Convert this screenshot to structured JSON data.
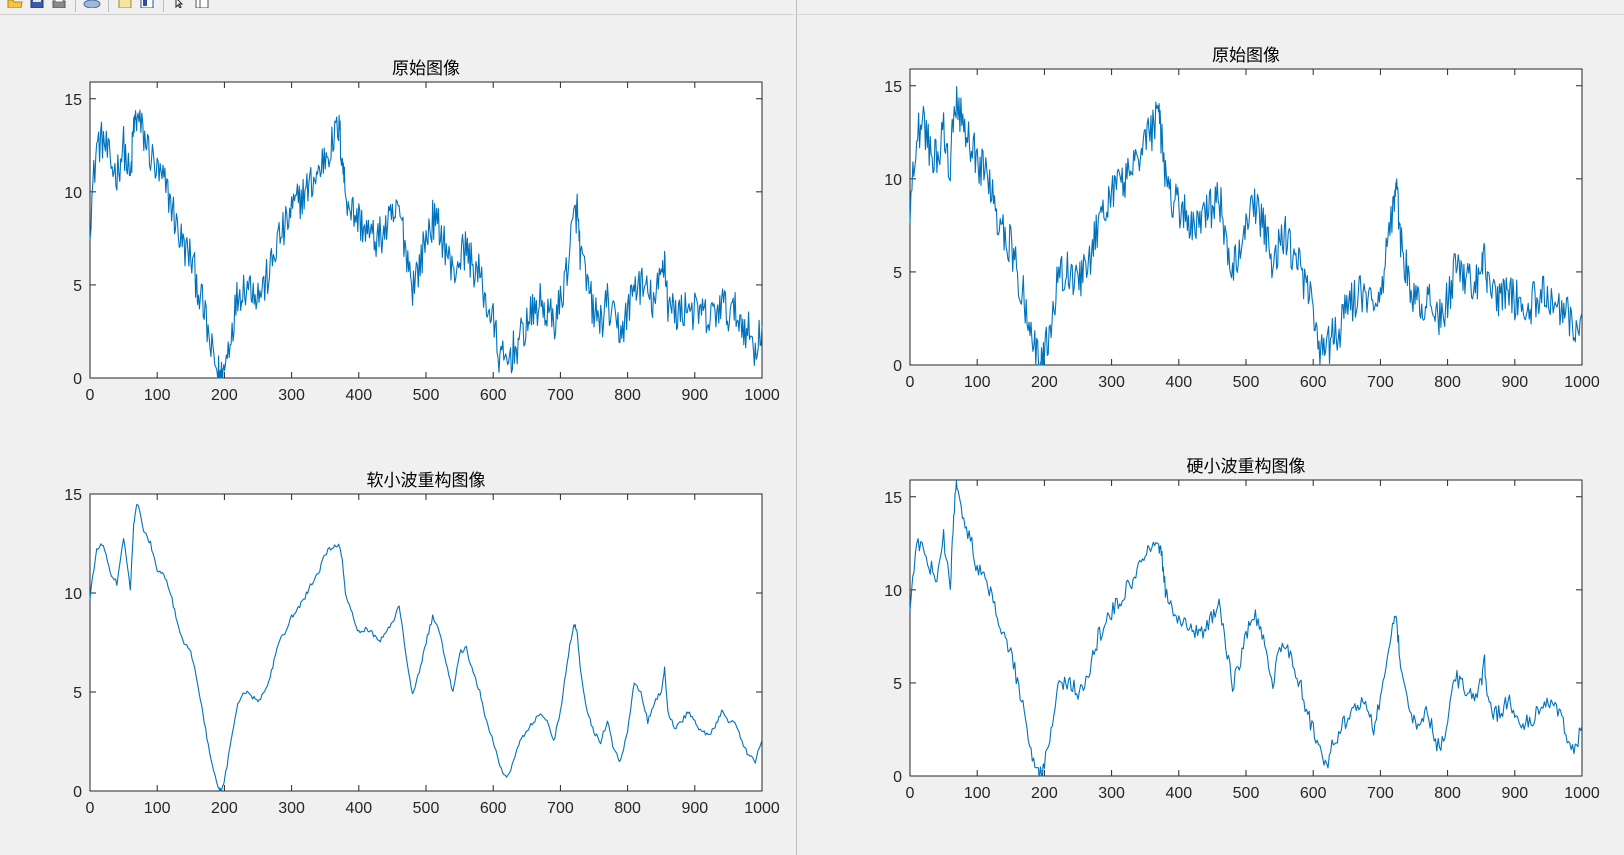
{
  "toolbar": {
    "icons": [
      "folder-open-icon",
      "save-icon",
      "print-icon",
      "link-icon",
      "new-figure-icon",
      "insert-colorbar-icon",
      "pointer-icon",
      "plot-browser-icon"
    ]
  },
  "colors": {
    "line": "#0072bd",
    "axes": "#262626",
    "figure_bg": "#f0f0f0",
    "plot_bg": "#ffffff"
  },
  "chart_data": [
    {
      "type": "line",
      "title": "原始图像",
      "xlabel": "",
      "ylabel": "",
      "xlim": [
        0,
        1000
      ],
      "ylim": [
        0,
        15.9
      ],
      "xticks": [
        "0",
        "100",
        "200",
        "300",
        "400",
        "500",
        "600",
        "700",
        "800",
        "900",
        "1000"
      ],
      "yticks": [
        "0",
        "5",
        "10",
        "15"
      ],
      "grid": false,
      "series": [
        {
          "noise": "raw",
          "x": [
            0,
            10,
            20,
            30,
            40,
            50,
            60,
            65,
            70,
            80,
            90,
            100,
            110,
            120,
            130,
            140,
            150,
            160,
            170,
            180,
            190,
            195,
            200,
            210,
            220,
            230,
            240,
            250,
            260,
            270,
            280,
            290,
            300,
            310,
            320,
            330,
            340,
            350,
            360,
            370,
            375,
            380,
            390,
            400,
            410,
            420,
            430,
            440,
            450,
            460,
            470,
            480,
            490,
            500,
            510,
            520,
            530,
            540,
            550,
            560,
            570,
            580,
            590,
            600,
            610,
            620,
            630,
            640,
            650,
            660,
            670,
            680,
            690,
            700,
            710,
            720,
            725,
            730,
            740,
            750,
            760,
            770,
            780,
            790,
            800,
            810,
            820,
            830,
            840,
            850,
            855,
            860,
            870,
            880,
            890,
            900,
            910,
            920,
            930,
            940,
            950,
            960,
            970,
            980,
            990,
            1000
          ],
          "y": [
            8.5,
            12.5,
            12.8,
            11.5,
            11.0,
            12.5,
            10.5,
            13.5,
            14.0,
            13.0,
            12.0,
            11.0,
            10.5,
            9.5,
            8.0,
            7.0,
            6.5,
            5.0,
            3.5,
            1.5,
            0.3,
            0.0,
            0.5,
            2.5,
            4.5,
            5.0,
            5.0,
            4.5,
            5.0,
            6.0,
            7.5,
            8.0,
            9.0,
            9.5,
            10.0,
            10.5,
            11.0,
            12.0,
            12.5,
            13.5,
            12.0,
            10.0,
            9.0,
            8.5,
            8.0,
            7.5,
            7.5,
            8.0,
            8.5,
            9.0,
            7.0,
            5.0,
            6.0,
            7.5,
            8.5,
            8.0,
            7.0,
            5.5,
            6.5,
            7.0,
            6.0,
            5.5,
            4.0,
            3.0,
            1.0,
            0.8,
            1.5,
            2.0,
            3.0,
            3.5,
            4.0,
            3.5,
            3.0,
            4.0,
            6.0,
            8.5,
            9.0,
            6.5,
            5.0,
            3.5,
            3.0,
            4.0,
            3.0,
            2.5,
            3.5,
            5.0,
            5.0,
            4.5,
            4.0,
            5.5,
            6.5,
            4.0,
            3.5,
            3.5,
            4.0,
            3.5,
            3.5,
            3.0,
            3.5,
            4.0,
            3.5,
            3.5,
            3.0,
            2.5,
            1.5,
            2.8
          ]
        }
      ]
    },
    {
      "type": "line",
      "title": "软小波重构图像",
      "xlabel": "",
      "ylabel": "",
      "xlim": [
        0,
        1000
      ],
      "ylim": [
        0,
        15
      ],
      "xticks": [
        "0",
        "100",
        "200",
        "300",
        "400",
        "500",
        "600",
        "700",
        "800",
        "900",
        "1000"
      ],
      "yticks": [
        "0",
        "5",
        "10",
        "15"
      ],
      "grid": false,
      "series": [
        {
          "noise": "smooth",
          "x": [
            0,
            10,
            20,
            30,
            40,
            50,
            60,
            65,
            70,
            80,
            90,
            100,
            110,
            120,
            130,
            140,
            150,
            160,
            170,
            180,
            190,
            195,
            200,
            210,
            220,
            230,
            240,
            250,
            260,
            270,
            280,
            290,
            300,
            310,
            320,
            330,
            340,
            350,
            360,
            370,
            375,
            380,
            390,
            400,
            410,
            420,
            430,
            440,
            450,
            460,
            470,
            480,
            490,
            500,
            510,
            520,
            530,
            540,
            550,
            560,
            570,
            580,
            590,
            600,
            610,
            620,
            630,
            640,
            650,
            660,
            670,
            680,
            690,
            700,
            710,
            720,
            725,
            730,
            740,
            750,
            760,
            770,
            780,
            790,
            800,
            810,
            820,
            830,
            840,
            850,
            855,
            860,
            870,
            880,
            890,
            900,
            910,
            920,
            930,
            940,
            950,
            960,
            970,
            980,
            990,
            1000
          ],
          "y": [
            9.8,
            12.2,
            12.5,
            11.0,
            10.5,
            12.8,
            10.2,
            13.5,
            14.6,
            13.2,
            12.5,
            11.2,
            11.0,
            10.0,
            8.5,
            7.5,
            7.0,
            5.5,
            3.5,
            1.5,
            0.2,
            0.0,
            0.5,
            2.5,
            4.5,
            5.0,
            4.8,
            4.5,
            5.0,
            6.0,
            7.5,
            8.0,
            8.8,
            9.2,
            9.8,
            10.5,
            11.0,
            12.0,
            12.3,
            12.5,
            11.8,
            10.0,
            9.0,
            8.0,
            8.2,
            8.0,
            7.5,
            8.0,
            8.5,
            9.4,
            7.0,
            4.8,
            6.0,
            7.5,
            8.8,
            8.0,
            6.5,
            5.0,
            7.0,
            7.2,
            6.0,
            5.0,
            3.5,
            2.5,
            1.2,
            0.6,
            1.5,
            2.5,
            3.0,
            3.5,
            4.0,
            3.5,
            2.5,
            4.0,
            6.5,
            8.5,
            8.0,
            6.0,
            4.0,
            3.0,
            2.5,
            3.5,
            2.0,
            1.5,
            3.0,
            5.5,
            5.0,
            3.5,
            4.5,
            5.0,
            6.2,
            4.0,
            3.2,
            3.5,
            4.0,
            3.5,
            3.0,
            2.8,
            3.2,
            4.0,
            3.5,
            3.5,
            2.5,
            1.8,
            1.5,
            2.6
          ]
        }
      ]
    },
    {
      "type": "line",
      "title": "原始图像",
      "xlabel": "",
      "ylabel": "",
      "xlim": [
        0,
        1000
      ],
      "ylim": [
        0,
        15.9
      ],
      "xticks": [
        "0",
        "100",
        "200",
        "300",
        "400",
        "500",
        "600",
        "700",
        "800",
        "900",
        "1000"
      ],
      "yticks": [
        "0",
        "5",
        "10",
        "15"
      ],
      "grid": false,
      "series": [
        {
          "noise": "raw",
          "x": [
            0,
            10,
            20,
            30,
            40,
            50,
            60,
            65,
            70,
            80,
            90,
            100,
            110,
            120,
            130,
            140,
            150,
            160,
            170,
            180,
            190,
            195,
            200,
            210,
            220,
            230,
            240,
            250,
            260,
            270,
            280,
            290,
            300,
            310,
            320,
            330,
            340,
            350,
            360,
            370,
            375,
            380,
            390,
            400,
            410,
            420,
            430,
            440,
            450,
            460,
            470,
            480,
            490,
            500,
            510,
            520,
            530,
            540,
            550,
            560,
            570,
            580,
            590,
            600,
            610,
            620,
            630,
            640,
            650,
            660,
            670,
            680,
            690,
            700,
            710,
            720,
            725,
            730,
            740,
            750,
            760,
            770,
            780,
            790,
            800,
            810,
            820,
            830,
            840,
            850,
            855,
            860,
            870,
            880,
            890,
            900,
            910,
            920,
            930,
            940,
            950,
            960,
            970,
            980,
            990,
            1000
          ],
          "y": [
            8.5,
            12.5,
            12.8,
            11.5,
            11.0,
            12.5,
            10.5,
            13.5,
            14.0,
            13.0,
            12.0,
            11.0,
            10.5,
            9.5,
            8.0,
            7.0,
            6.5,
            5.0,
            3.5,
            1.5,
            0.3,
            0.0,
            0.5,
            2.5,
            4.5,
            5.0,
            5.0,
            4.5,
            5.0,
            6.0,
            7.5,
            8.0,
            9.0,
            9.5,
            10.0,
            10.5,
            11.0,
            12.0,
            12.5,
            13.5,
            12.0,
            10.0,
            9.0,
            8.5,
            8.0,
            7.5,
            7.5,
            8.0,
            8.5,
            9.0,
            7.0,
            5.0,
            6.0,
            7.5,
            8.5,
            8.0,
            7.0,
            5.5,
            6.5,
            7.0,
            6.0,
            5.5,
            4.0,
            3.0,
            1.0,
            0.8,
            1.5,
            2.0,
            3.0,
            3.5,
            4.0,
            3.5,
            3.0,
            4.0,
            6.0,
            8.5,
            9.0,
            6.5,
            5.0,
            3.5,
            3.0,
            4.0,
            3.0,
            2.5,
            3.5,
            5.0,
            5.0,
            4.5,
            4.0,
            5.5,
            6.5,
            4.0,
            3.5,
            3.5,
            4.0,
            3.5,
            3.5,
            3.0,
            3.5,
            4.0,
            3.5,
            3.5,
            3.0,
            2.5,
            1.5,
            2.8
          ]
        }
      ]
    },
    {
      "type": "line",
      "title": "硬小波重构图像",
      "xlabel": "",
      "ylabel": "",
      "xlim": [
        0,
        1000
      ],
      "ylim": [
        0,
        15.9
      ],
      "xticks": [
        "0",
        "100",
        "200",
        "300",
        "400",
        "500",
        "600",
        "700",
        "800",
        "900",
        "1000"
      ],
      "yticks": [
        "0",
        "5",
        "10",
        "15"
      ],
      "grid": false,
      "series": [
        {
          "noise": "medium",
          "x": [
            0,
            10,
            20,
            30,
            40,
            50,
            60,
            65,
            70,
            80,
            90,
            100,
            110,
            120,
            130,
            140,
            150,
            160,
            170,
            180,
            190,
            195,
            200,
            210,
            220,
            230,
            240,
            250,
            260,
            270,
            280,
            290,
            300,
            310,
            320,
            330,
            340,
            350,
            360,
            370,
            375,
            380,
            390,
            400,
            410,
            420,
            430,
            440,
            450,
            460,
            470,
            480,
            490,
            500,
            510,
            520,
            530,
            540,
            550,
            560,
            570,
            580,
            590,
            600,
            610,
            620,
            630,
            640,
            650,
            660,
            670,
            680,
            690,
            700,
            710,
            720,
            725,
            730,
            740,
            750,
            760,
            770,
            780,
            790,
            800,
            810,
            820,
            830,
            840,
            850,
            855,
            860,
            870,
            880,
            890,
            900,
            910,
            920,
            930,
            940,
            950,
            960,
            970,
            980,
            990,
            1000
          ],
          "y": [
            9.2,
            12.3,
            12.6,
            11.2,
            10.8,
            12.8,
            10.2,
            14.0,
            15.8,
            13.5,
            12.8,
            11.0,
            10.8,
            9.8,
            8.5,
            7.3,
            6.8,
            5.0,
            3.5,
            1.5,
            0.2,
            0.0,
            0.5,
            2.5,
            4.6,
            5.0,
            5.0,
            4.5,
            5.0,
            6.0,
            7.5,
            8.0,
            8.8,
            9.3,
            10.0,
            10.5,
            11.2,
            12.0,
            12.5,
            12.4,
            11.8,
            10.0,
            9.0,
            8.2,
            8.2,
            8.0,
            7.5,
            8.0,
            8.5,
            9.5,
            7.0,
            4.8,
            6.0,
            7.5,
            8.8,
            8.0,
            6.6,
            5.0,
            7.0,
            7.2,
            6.0,
            5.0,
            3.5,
            2.5,
            1.2,
            0.6,
            1.8,
            2.5,
            3.0,
            3.5,
            4.0,
            3.5,
            2.5,
            4.0,
            6.5,
            8.5,
            8.0,
            6.0,
            4.0,
            3.0,
            2.5,
            3.6,
            2.0,
            1.5,
            3.0,
            5.4,
            5.0,
            4.2,
            4.4,
            5.0,
            6.2,
            4.0,
            3.3,
            3.5,
            4.0,
            3.5,
            3.0,
            2.8,
            3.2,
            3.8,
            3.8,
            3.8,
            3.0,
            2.0,
            1.5,
            2.7
          ]
        }
      ]
    }
  ]
}
